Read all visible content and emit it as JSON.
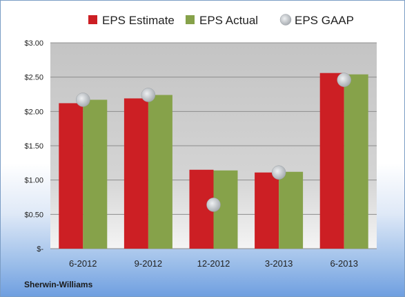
{
  "company": "Sherwin-Williams",
  "chart_data": {
    "type": "bar",
    "categories": [
      "6-2012",
      "9-2012",
      "12-2012",
      "3-2013",
      "6-2013"
    ],
    "series": [
      {
        "name": "EPS Estimate",
        "kind": "bar",
        "color": "#cc1f24",
        "values": [
          2.12,
          2.19,
          1.15,
          1.11,
          2.56
        ]
      },
      {
        "name": "EPS Actual",
        "kind": "bar",
        "color": "#86a24a",
        "values": [
          2.17,
          2.24,
          1.14,
          1.12,
          2.54
        ]
      },
      {
        "name": "EPS GAAP",
        "kind": "marker",
        "color": "#bfc4c8",
        "values": [
          2.17,
          2.24,
          0.64,
          1.11,
          2.46
        ]
      }
    ],
    "y_ticks": [
      {
        "value": 0,
        "label": "$-"
      },
      {
        "value": 0.5,
        "label": "$0.50"
      },
      {
        "value": 1,
        "label": "$1.00"
      },
      {
        "value": 1.5,
        "label": "$1.50"
      },
      {
        "value": 2,
        "label": "$2.00"
      },
      {
        "value": 2.5,
        "label": "$2.50"
      },
      {
        "value": 3,
        "label": "$3.00"
      }
    ],
    "ylim": [
      0,
      3
    ],
    "grid": true,
    "legend_position": "top"
  }
}
